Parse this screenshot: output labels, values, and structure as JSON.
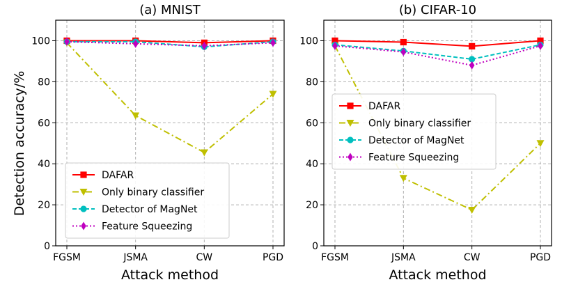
{
  "figure": {
    "ylabel": "Detection accuracy/%"
  },
  "chart_data": [
    {
      "type": "line",
      "title": "(a) MNIST",
      "xlabel": "Attack method",
      "ylabel": "Detection accuracy/%",
      "categories": [
        "FGSM",
        "JSMA",
        "CW",
        "PGD"
      ],
      "ylim": [
        0,
        110
      ],
      "yticks": [
        0,
        20,
        40,
        60,
        80,
        100
      ],
      "grid": true,
      "legend_position": "lower-left",
      "series": [
        {
          "name": "DAFAR",
          "values": [
            100,
            100,
            99,
            100
          ],
          "color": "#ff0000",
          "marker": "square",
          "dash": "solid"
        },
        {
          "name": "Only binary classifier",
          "values": [
            99,
            63.5,
            45.5,
            74
          ],
          "color": "#bfbf00",
          "marker": "triangle-down",
          "dash": "dashdot"
        },
        {
          "name": "Detector of MagNet",
          "values": [
            99.5,
            99.5,
            97,
            99.5
          ],
          "color": "#00bfbf",
          "marker": "circle",
          "dash": "dashed"
        },
        {
          "name": "Feature Squeezing",
          "values": [
            99.5,
            98.5,
            97.5,
            99
          ],
          "color": "#bf00bf",
          "marker": "diamond",
          "dash": "dotted"
        }
      ]
    },
    {
      "type": "line",
      "title": "(b) CIFAR-10",
      "xlabel": "Attack method",
      "ylabel": "",
      "categories": [
        "FGSM",
        "JSMA",
        "CW",
        "PGD"
      ],
      "ylim": [
        0,
        110
      ],
      "yticks": [
        0,
        20,
        40,
        60,
        80,
        100
      ],
      "grid": true,
      "legend_position": "center-left",
      "series": [
        {
          "name": "DAFAR",
          "values": [
            100,
            99.3,
            97.3,
            100
          ],
          "color": "#ff0000",
          "marker": "square",
          "dash": "solid"
        },
        {
          "name": "Only binary classifier",
          "values": [
            97.5,
            33,
            17.5,
            50
          ],
          "color": "#bfbf00",
          "marker": "triangle-down",
          "dash": "dashdot"
        },
        {
          "name": "Detector of MagNet",
          "values": [
            98,
            95,
            91,
            98
          ],
          "color": "#00bfbf",
          "marker": "circle",
          "dash": "dashed"
        },
        {
          "name": "Feature Squeezing",
          "values": [
            97.5,
            94.5,
            88,
            97.5
          ],
          "color": "#bf00bf",
          "marker": "diamond",
          "dash": "dotted"
        }
      ]
    }
  ]
}
